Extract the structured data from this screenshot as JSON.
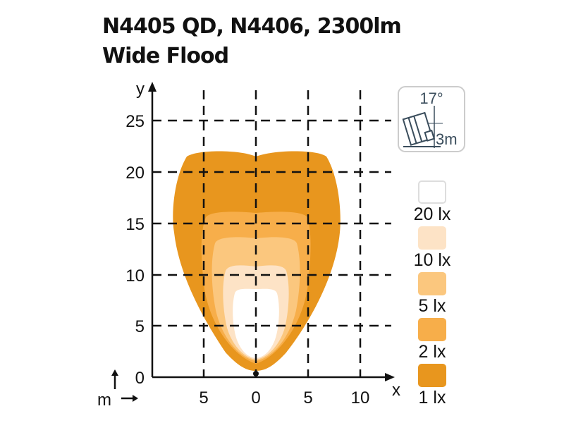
{
  "title_line1": "N4405 QD, N4406, 2300lm",
  "title_line2": "Wide Flood",
  "axes": {
    "x_label": "x",
    "y_label": "y",
    "unit_label": "m",
    "x_ticks": [
      "5",
      "0",
      "5",
      "10"
    ],
    "y_ticks": [
      "25",
      "20",
      "15",
      "10",
      "5",
      "0"
    ]
  },
  "mount_icon": {
    "angle": "17°",
    "height": "3m"
  },
  "legend": [
    {
      "label": "20 lx",
      "color": "#FFFFFF"
    },
    {
      "label": "10 lx",
      "color": "#FDE3C6"
    },
    {
      "label": "5 lx",
      "color": "#FBC77E"
    },
    {
      "label": "2 lx",
      "color": "#F7AE4A"
    },
    {
      "label": "1 lx",
      "color": "#E8961E"
    }
  ]
}
